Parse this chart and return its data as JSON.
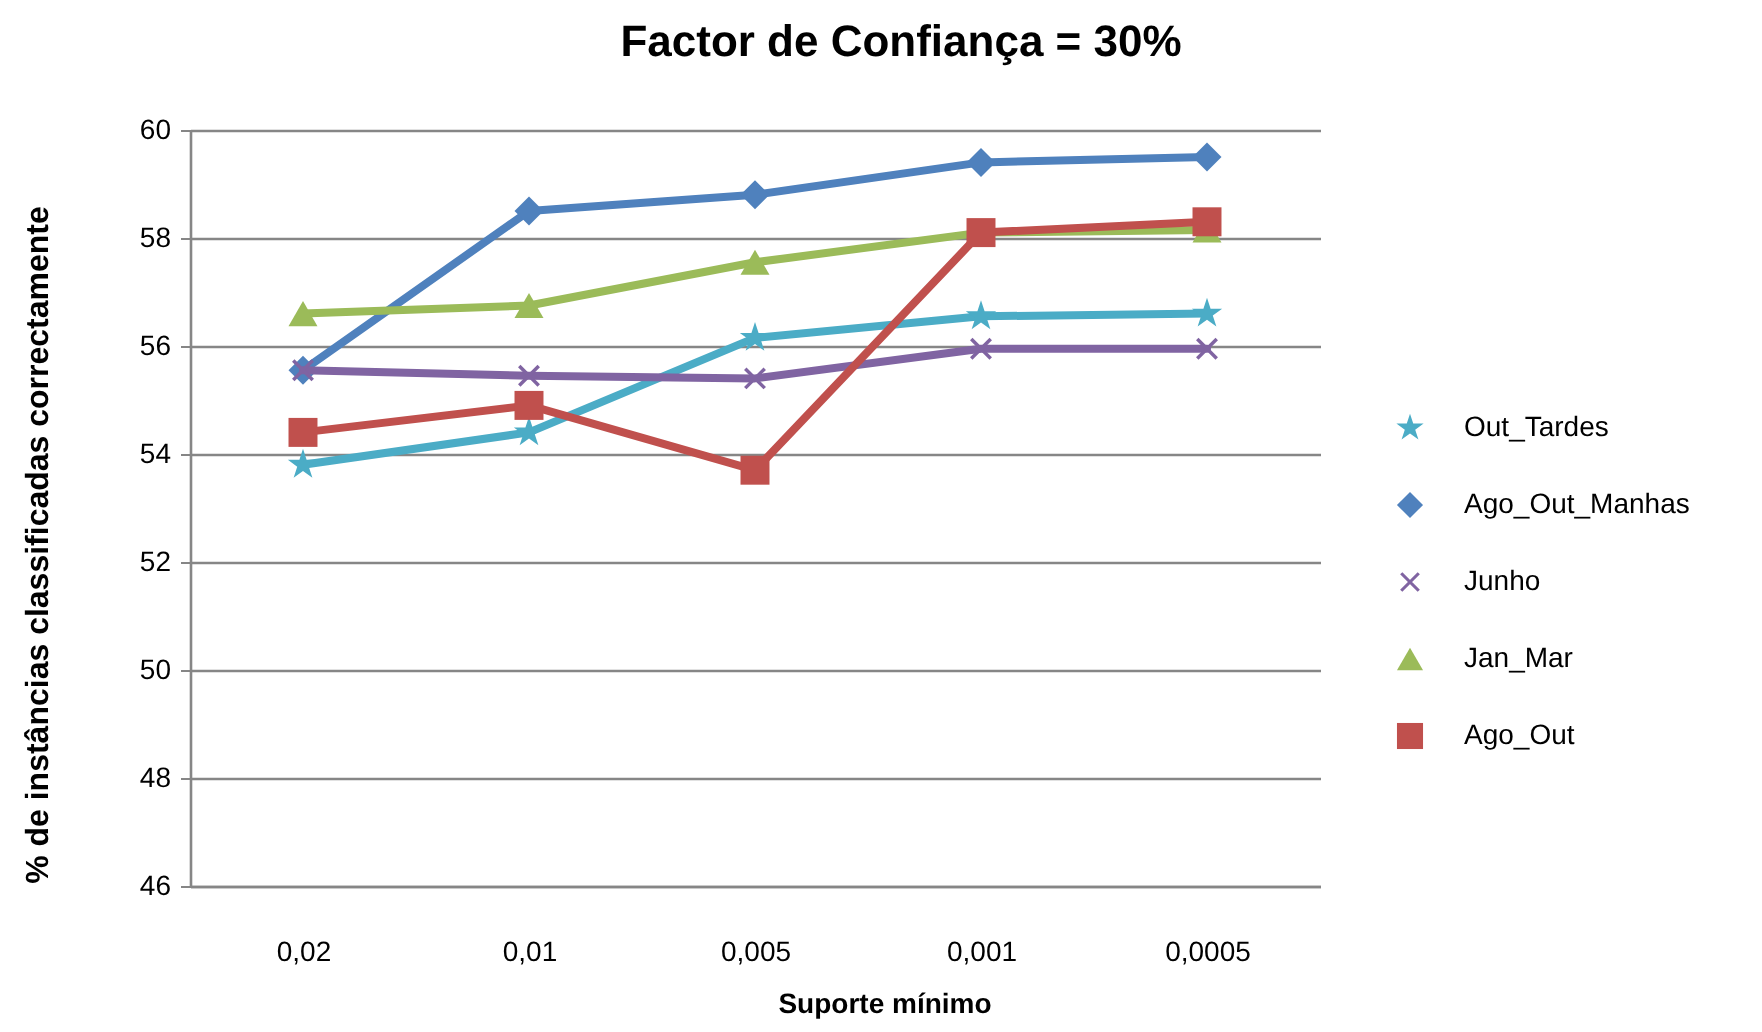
{
  "chart_data": {
    "type": "line",
    "title": "Factor de Confiança = 30%",
    "xlabel": "Suporte mínimo",
    "ylabel": "% de instâncias classificadas correctamente",
    "categories": [
      "0,02",
      "0,01",
      "0,005",
      "0,001",
      "0,0005"
    ],
    "ylim": [
      46,
      60
    ],
    "yticks": [
      46,
      48,
      50,
      52,
      54,
      56,
      58,
      60
    ],
    "grid": "y",
    "legend": "right",
    "line_style": "solid",
    "series": [
      {
        "name": "Out_Tardes",
        "color": "#4bacc6",
        "marker": "star",
        "values": [
          53.8,
          54.4,
          56.15,
          56.55,
          56.6
        ]
      },
      {
        "name": "Ago_Out_Manhas",
        "color": "#4f81bd",
        "marker": "diamond",
        "values": [
          55.55,
          58.5,
          58.8,
          59.4,
          59.5
        ]
      },
      {
        "name": "Junho",
        "color": "#8064a2",
        "marker": "cross",
        "values": [
          55.55,
          55.45,
          55.4,
          55.95,
          55.95
        ]
      },
      {
        "name": "Jan_Mar",
        "color": "#9bbb59",
        "marker": "triangle",
        "values": [
          56.6,
          56.75,
          57.55,
          58.1,
          58.15
        ]
      },
      {
        "name": "Ago_Out",
        "color": "#c0504d",
        "marker": "square",
        "values": [
          54.4,
          54.9,
          53.7,
          58.1,
          58.3
        ]
      }
    ]
  }
}
